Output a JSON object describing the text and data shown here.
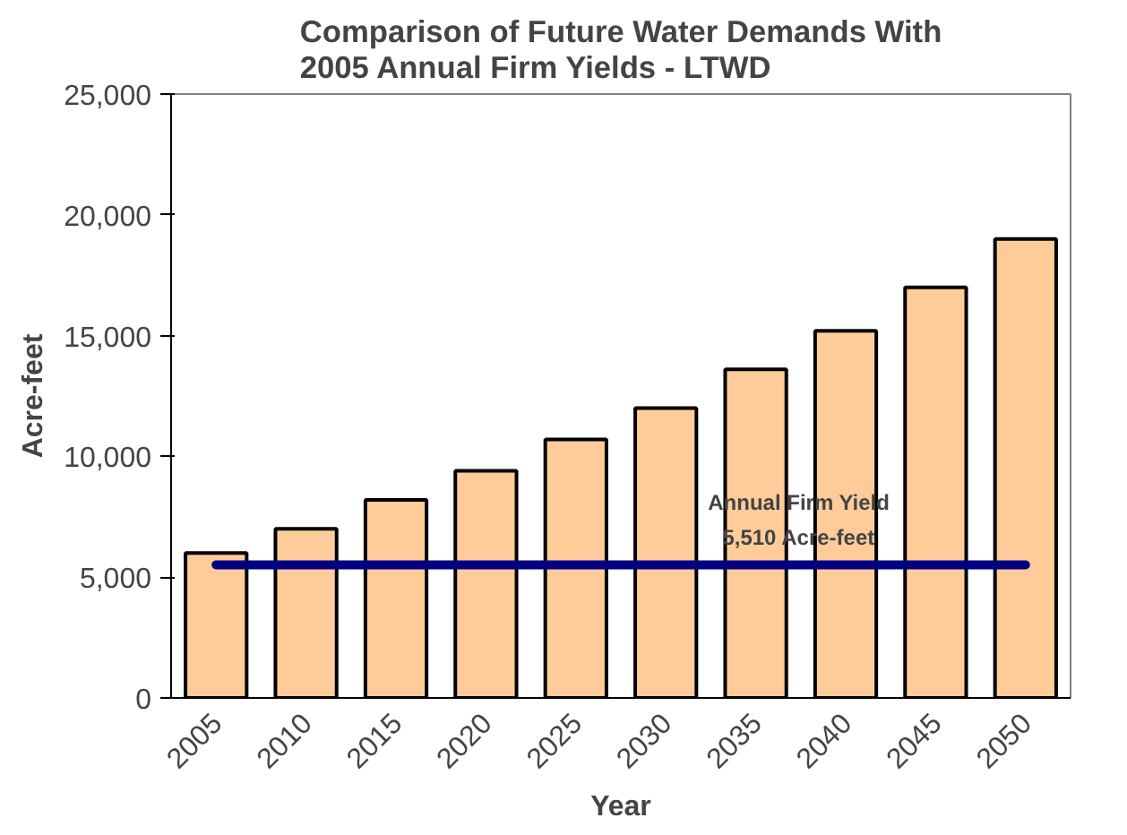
{
  "chart_data": {
    "type": "bar",
    "title": "Comparison of Future Water Demands With 2005 Annual Firm Yields - LTWD",
    "xlabel": "Year",
    "ylabel": "Acre-feet",
    "categories": [
      "2005",
      "2010",
      "2015",
      "2020",
      "2025",
      "2030",
      "2035",
      "2040",
      "2045",
      "2050"
    ],
    "values": [
      6000,
      7000,
      8200,
      9400,
      10700,
      12000,
      13600,
      15200,
      17000,
      19000
    ],
    "color": "#ffcc99",
    "ylim": [
      0,
      25000
    ],
    "yticks": [
      {
        "value": 0,
        "label": "0"
      },
      {
        "value": 5000,
        "label": "5,000"
      },
      {
        "value": 10000,
        "label": "10,000"
      },
      {
        "value": 15000,
        "label": "15,000"
      },
      {
        "value": 20000,
        "label": "20,000"
      },
      {
        "value": 25000,
        "label": "25,000"
      }
    ],
    "grid": false,
    "ref_lines": [
      {
        "axis": "y",
        "value": 5510,
        "label": "Annual Firm Yield\n5,510 Acre-feet",
        "color": "#000080"
      }
    ]
  }
}
